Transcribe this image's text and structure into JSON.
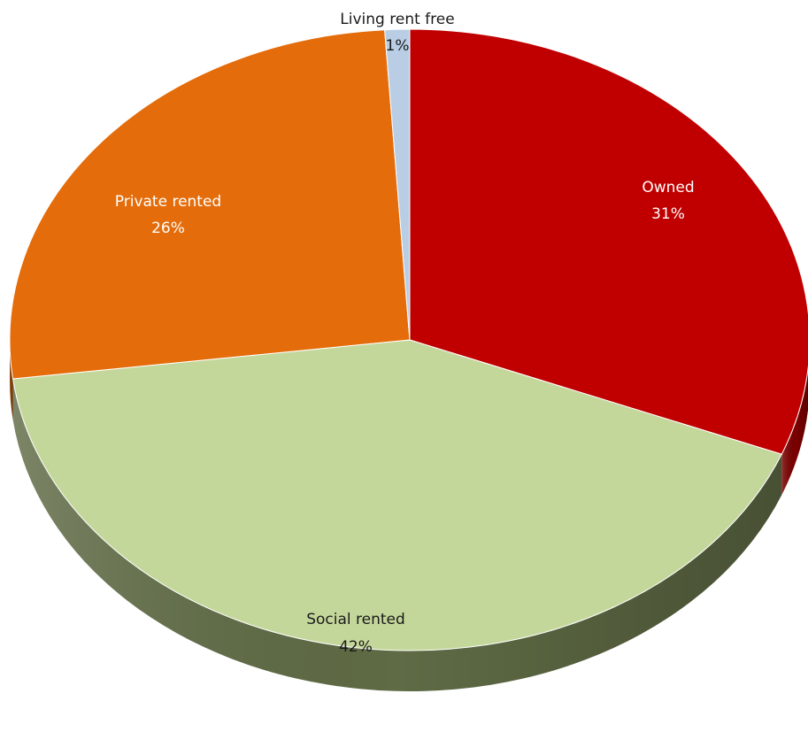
{
  "chart_data": {
    "type": "pie",
    "style": "3d",
    "title": "",
    "slices": [
      {
        "label": "Owned",
        "value": 31,
        "display": "31%",
        "color": "#C00000",
        "side_color": "#7a0000",
        "label_color": "#ffffff"
      },
      {
        "label": "Social rented",
        "value": 42,
        "display": "42%",
        "color": "#C4D79B",
        "side_color": "#5f6b45",
        "label_color": "#1a1a1a"
      },
      {
        "label": "Private rented",
        "value": 26,
        "display": "26%",
        "color": "#E46C0A",
        "side_color": "#8a3f05",
        "label_color": "#ffffff"
      },
      {
        "label": "Living rent free",
        "value": 1,
        "display": "1%",
        "color": "#B9CDE5",
        "side_color": "#7f95b0",
        "label_color": "#1a1a1a"
      }
    ]
  }
}
